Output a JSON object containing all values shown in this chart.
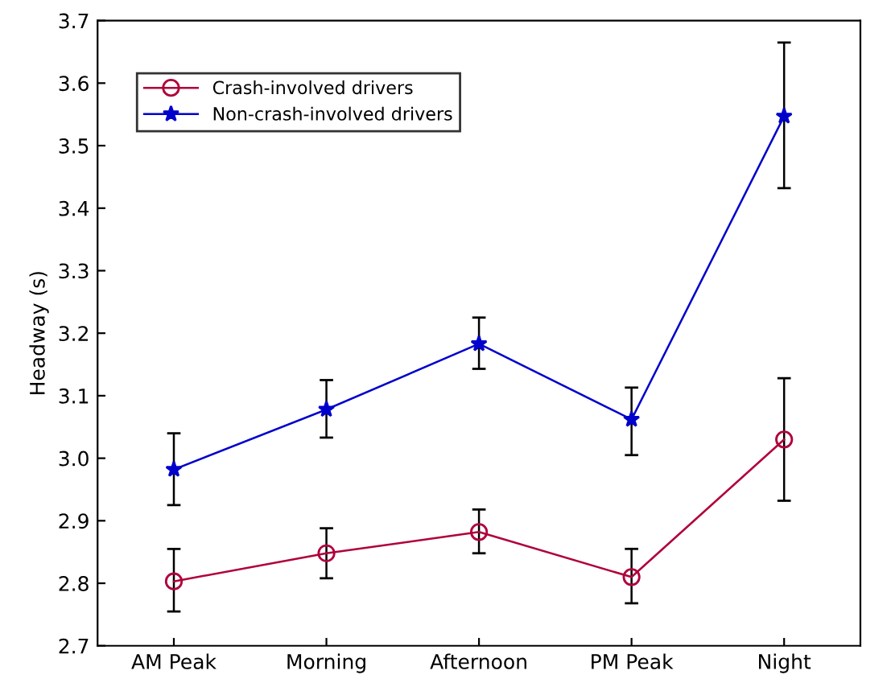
{
  "chart_data": {
    "type": "line",
    "ylabel": "Headway (s)",
    "categories": [
      "AM Peak",
      "Morning",
      "Afternoon",
      "PM Peak",
      "Night"
    ],
    "series": [
      {
        "name": "Crash-involved drivers",
        "color": "#b0003a",
        "marker": "circle",
        "values": [
          2.803,
          2.848,
          2.882,
          2.81,
          3.03
        ],
        "errors": [
          [
            2.755,
            2.855
          ],
          [
            2.808,
            2.888
          ],
          [
            2.848,
            2.918
          ],
          [
            2.768,
            2.855
          ],
          [
            2.932,
            3.128
          ]
        ]
      },
      {
        "name": "Non-crash-involved drivers",
        "color": "#0000cc",
        "marker": "star",
        "values": [
          2.982,
          3.078,
          3.183,
          3.062,
          3.547
        ],
        "errors": [
          [
            2.925,
            3.04
          ],
          [
            3.033,
            3.125
          ],
          [
            3.143,
            3.225
          ],
          [
            3.005,
            3.113
          ],
          [
            3.432,
            3.665
          ]
        ]
      }
    ],
    "ylim": [
      2.7,
      3.7
    ],
    "yticks": [
      2.7,
      2.8,
      2.9,
      {
        "value": 3.0,
        "label": "3.0"
      },
      3.1,
      3.2,
      3.3,
      3.4,
      3.5,
      3.6,
      3.7
    ],
    "grid": false,
    "legend": "top left",
    "line_style": "solid"
  }
}
